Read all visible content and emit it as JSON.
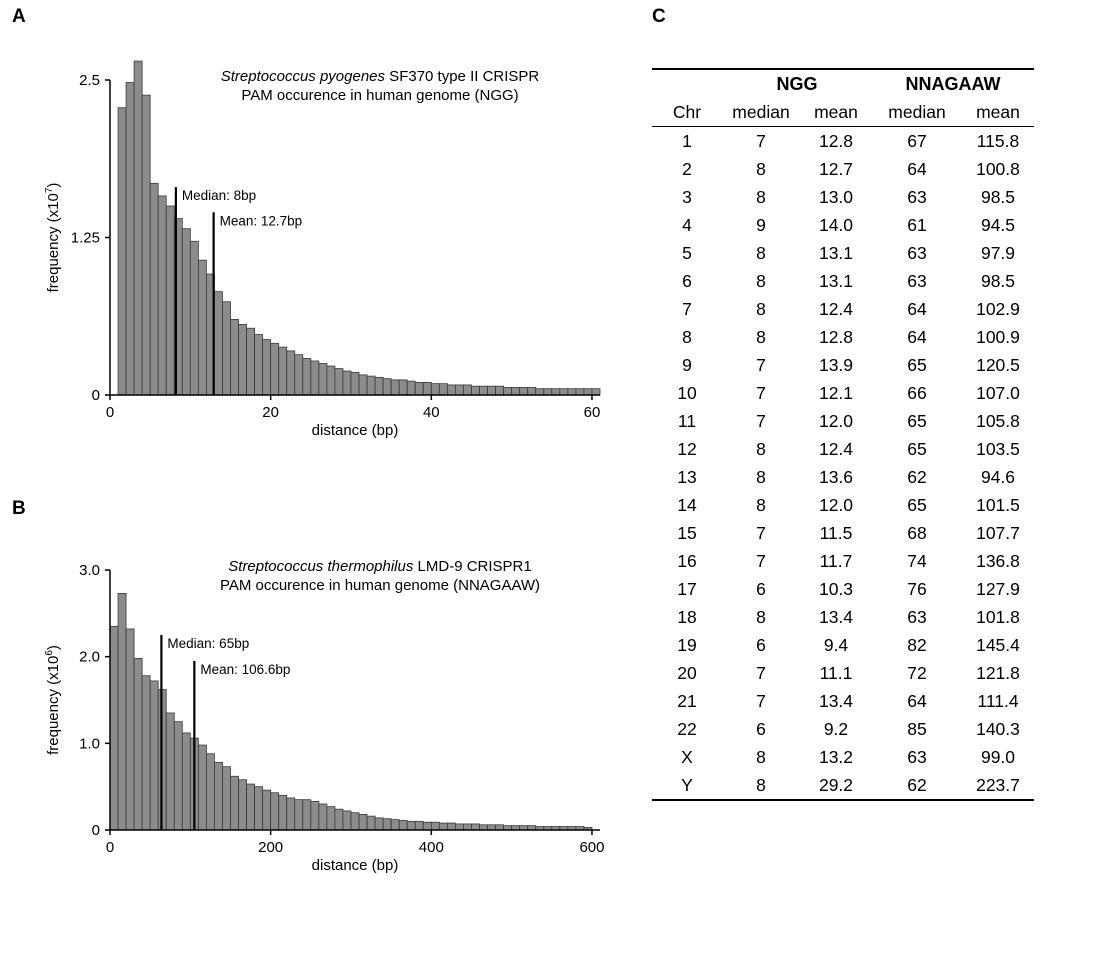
{
  "panels": {
    "a": "A",
    "b": "B",
    "c": "C"
  },
  "chart_data": [
    {
      "type": "bar",
      "title_italic": "Streptococcus pyogenes",
      "title_rest": " SF370 type II CRISPR",
      "subtitle": "PAM occurence in human genome (NGG)",
      "xlabel": "distance (bp)",
      "ylabel_prefix": "frequency (x10",
      "ylabel_exp": "7",
      "ylabel_suffix": ")",
      "xlim": [
        0,
        61
      ],
      "ylim": [
        0,
        2.5
      ],
      "xticks": [
        {
          "v": 0,
          "label": "0"
        },
        {
          "v": 20,
          "label": "20"
        },
        {
          "v": 40,
          "label": "40"
        },
        {
          "v": 60,
          "label": "60"
        }
      ],
      "yticks": [
        {
          "v": 0,
          "label": "0"
        },
        {
          "v": 1.25,
          "label": "1.25"
        },
        {
          "v": 2.5,
          "label": "2.5"
        }
      ],
      "bin_start": 1,
      "bin_width": 1,
      "values": [
        2.28,
        2.48,
        2.65,
        2.38,
        1.68,
        1.58,
        1.5,
        1.4,
        1.32,
        1.22,
        1.07,
        0.96,
        0.82,
        0.74,
        0.6,
        0.56,
        0.53,
        0.48,
        0.44,
        0.41,
        0.38,
        0.35,
        0.32,
        0.29,
        0.27,
        0.25,
        0.23,
        0.21,
        0.19,
        0.18,
        0.16,
        0.15,
        0.14,
        0.13,
        0.12,
        0.12,
        0.11,
        0.1,
        0.1,
        0.09,
        0.09,
        0.08,
        0.08,
        0.08,
        0.07,
        0.07,
        0.07,
        0.07,
        0.06,
        0.06,
        0.06,
        0.06,
        0.05,
        0.05,
        0.05,
        0.05,
        0.05,
        0.05,
        0.05,
        0.05
      ],
      "lines": [
        {
          "x": 8.2,
          "y": 1.65,
          "label": "Median: 8bp"
        },
        {
          "x": 12.9,
          "y": 1.45,
          "label": "Mean: 12.7bp"
        }
      ]
    },
    {
      "type": "bar",
      "title_italic": "Streptococcus thermophilus",
      "title_rest": " LMD-9 CRISPR1",
      "subtitle": "PAM occurence in human genome (NNAGAAW)",
      "xlabel": "distance (bp)",
      "ylabel_prefix": "frequency (x10",
      "ylabel_exp": "6",
      "ylabel_suffix": ")",
      "xlim": [
        0,
        610
      ],
      "ylim": [
        0,
        3.0
      ],
      "xticks": [
        {
          "v": 0,
          "label": "0"
        },
        {
          "v": 200,
          "label": "200"
        },
        {
          "v": 400,
          "label": "400"
        },
        {
          "v": 600,
          "label": "600"
        }
      ],
      "yticks": [
        {
          "v": 0,
          "label": "0"
        },
        {
          "v": 1.0,
          "label": "1.0"
        },
        {
          "v": 2.0,
          "label": "2.0"
        },
        {
          "v": 3.0,
          "label": "3.0"
        }
      ],
      "bin_start": 0,
      "bin_width": 10,
      "values": [
        2.35,
        2.73,
        2.32,
        1.98,
        1.78,
        1.72,
        1.62,
        1.35,
        1.25,
        1.12,
        1.06,
        0.98,
        0.88,
        0.78,
        0.73,
        0.62,
        0.58,
        0.53,
        0.5,
        0.46,
        0.43,
        0.4,
        0.37,
        0.35,
        0.35,
        0.33,
        0.3,
        0.27,
        0.24,
        0.22,
        0.2,
        0.18,
        0.16,
        0.14,
        0.13,
        0.12,
        0.11,
        0.1,
        0.1,
        0.09,
        0.09,
        0.08,
        0.08,
        0.07,
        0.07,
        0.07,
        0.06,
        0.06,
        0.06,
        0.05,
        0.05,
        0.05,
        0.05,
        0.04,
        0.04,
        0.04,
        0.04,
        0.04,
        0.04,
        0.03
      ],
      "lines": [
        {
          "x": 64,
          "y": 2.25,
          "label": "Median: 65bp"
        },
        {
          "x": 105,
          "y": 1.95,
          "label": "Mean: 106.6bp"
        }
      ]
    }
  ],
  "table": {
    "groups": [
      "NGG",
      "NNAGAAW"
    ],
    "headers": [
      "Chr",
      "median",
      "mean",
      "median",
      "mean"
    ],
    "rows": [
      [
        "1",
        "7",
        "12.8",
        "67",
        "115.8"
      ],
      [
        "2",
        "8",
        "12.7",
        "64",
        "100.8"
      ],
      [
        "3",
        "8",
        "13.0",
        "63",
        "98.5"
      ],
      [
        "4",
        "9",
        "14.0",
        "61",
        "94.5"
      ],
      [
        "5",
        "8",
        "13.1",
        "63",
        "97.9"
      ],
      [
        "6",
        "8",
        "13.1",
        "63",
        "98.5"
      ],
      [
        "7",
        "8",
        "12.4",
        "64",
        "102.9"
      ],
      [
        "8",
        "8",
        "12.8",
        "64",
        "100.9"
      ],
      [
        "9",
        "7",
        "13.9",
        "65",
        "120.5"
      ],
      [
        "10",
        "7",
        "12.1",
        "66",
        "107.0"
      ],
      [
        "11",
        "7",
        "12.0",
        "65",
        "105.8"
      ],
      [
        "12",
        "8",
        "12.4",
        "65",
        "103.5"
      ],
      [
        "13",
        "8",
        "13.6",
        "62",
        "94.6"
      ],
      [
        "14",
        "8",
        "12.0",
        "65",
        "101.5"
      ],
      [
        "15",
        "7",
        "11.5",
        "68",
        "107.7"
      ],
      [
        "16",
        "7",
        "11.7",
        "74",
        "136.8"
      ],
      [
        "17",
        "6",
        "10.3",
        "76",
        "127.9"
      ],
      [
        "18",
        "8",
        "13.4",
        "63",
        "101.8"
      ],
      [
        "19",
        "6",
        "9.4",
        "82",
        "145.4"
      ],
      [
        "20",
        "7",
        "11.1",
        "72",
        "121.8"
      ],
      [
        "21",
        "7",
        "13.4",
        "64",
        "111.4"
      ],
      [
        "22",
        "6",
        "9.2",
        "85",
        "140.3"
      ],
      [
        "X",
        "8",
        "13.2",
        "63",
        "99.0"
      ],
      [
        "Y",
        "8",
        "29.2",
        "62",
        "223.7"
      ]
    ]
  },
  "colors": {
    "bar_fill": "#8c8c8c",
    "bar_stroke": "#3a3a3a",
    "axis": "#000000"
  }
}
